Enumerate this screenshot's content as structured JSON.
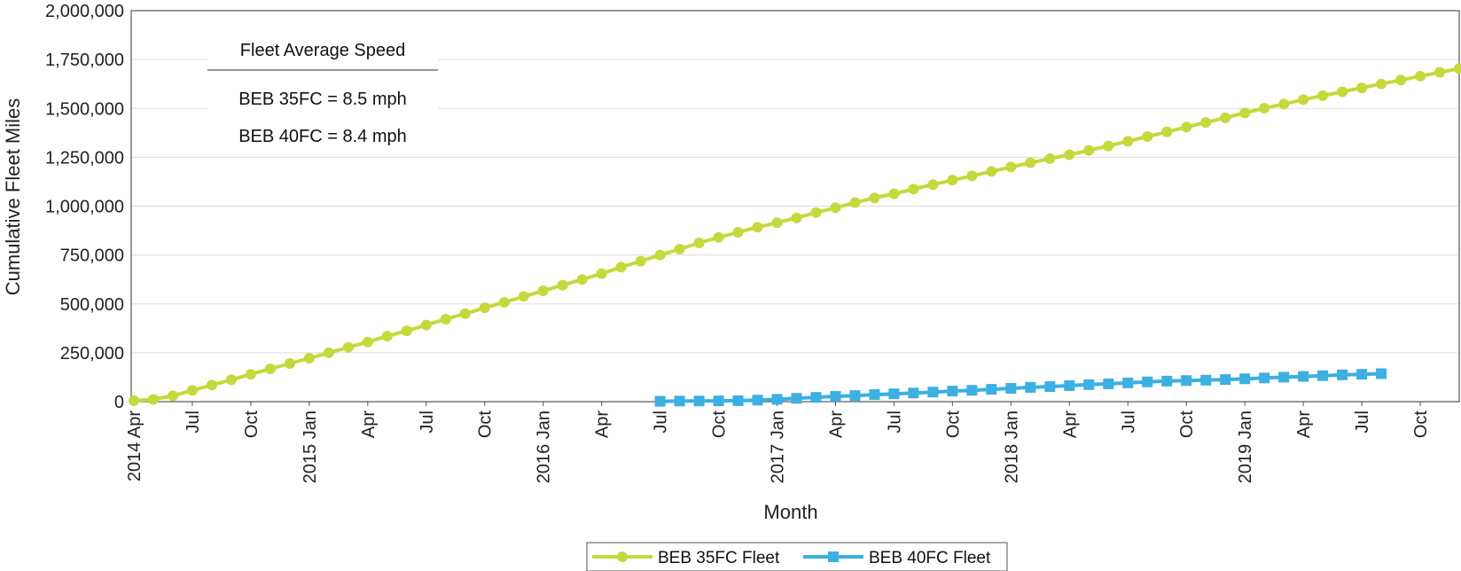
{
  "colors": {
    "series_35fc": "#c5d93b",
    "series_40fc": "#3bb0e2",
    "grid": "#dddddd",
    "axis": "#555555",
    "text": "#222222"
  },
  "annotation": {
    "title": "Fleet Average Speed",
    "lines": [
      "BEB 35FC = 8.5 mph",
      "BEB 40FC = 8.4 mph"
    ]
  },
  "chart_data": {
    "type": "line",
    "title": "",
    "xlabel": "Month",
    "ylabel": "Cumulative Fleet Miles",
    "ylim": [
      0,
      2000000
    ],
    "yticks": [
      0,
      250000,
      500000,
      750000,
      1000000,
      1250000,
      1500000,
      1750000,
      2000000
    ],
    "ytick_labels": [
      "0",
      "250,000",
      "500,000",
      "750,000",
      "1,000,000",
      "1,250,000",
      "1,500,000",
      "1,750,000",
      "2,000,000"
    ],
    "x_months": [
      "2014-04",
      "2014-05",
      "2014-06",
      "2014-07",
      "2014-08",
      "2014-09",
      "2014-10",
      "2014-11",
      "2014-12",
      "2015-01",
      "2015-02",
      "2015-03",
      "2015-04",
      "2015-05",
      "2015-06",
      "2015-07",
      "2015-08",
      "2015-09",
      "2015-10",
      "2015-11",
      "2015-12",
      "2016-01",
      "2016-02",
      "2016-03",
      "2016-04",
      "2016-05",
      "2016-06",
      "2016-07",
      "2016-08",
      "2016-09",
      "2016-10",
      "2016-11",
      "2016-12",
      "2017-01",
      "2017-02",
      "2017-03",
      "2017-04",
      "2017-05",
      "2017-06",
      "2017-07",
      "2017-08",
      "2017-09",
      "2017-10",
      "2017-11",
      "2017-12",
      "2018-01",
      "2018-02",
      "2018-03",
      "2018-04",
      "2018-05",
      "2018-06",
      "2018-07",
      "2018-08",
      "2018-09",
      "2018-10",
      "2018-11",
      "2018-12",
      "2019-01",
      "2019-02",
      "2019-03",
      "2019-04",
      "2019-05",
      "2019-06",
      "2019-07",
      "2019-08",
      "2019-09",
      "2019-10",
      "2019-11",
      "2019-12"
    ],
    "xtick_labels": [
      "2014 Apr",
      "Jul",
      "Oct",
      "2015 Jan",
      "Apr",
      "Jul",
      "Oct",
      "2016 Jan",
      "Apr",
      "Jul",
      "Oct",
      "2017 Jan",
      "Apr",
      "Jul",
      "Oct",
      "2018 Jan",
      "Apr",
      "Jul",
      "Oct",
      "2019 Jan",
      "Apr",
      "Jul",
      "Oct"
    ],
    "xtick_months": [
      "2014-04",
      "2014-07",
      "2014-10",
      "2015-01",
      "2015-04",
      "2015-07",
      "2015-10",
      "2016-01",
      "2016-04",
      "2016-07",
      "2016-10",
      "2017-01",
      "2017-04",
      "2017-07",
      "2017-10",
      "2018-01",
      "2018-04",
      "2018-07",
      "2018-10",
      "2019-01",
      "2019-04",
      "2019-07",
      "2019-10"
    ],
    "grid": true,
    "legend_position": "bottom-center",
    "series": [
      {
        "name": "BEB 35FC Fleet",
        "marker": "circle",
        "color": "#c5d93b",
        "start_month": "2014-04",
        "values": [
          5000,
          12000,
          30000,
          58000,
          85000,
          112000,
          140000,
          168000,
          195000,
          222000,
          250000,
          278000,
          305000,
          335000,
          362000,
          392000,
          422000,
          450000,
          480000,
          508000,
          538000,
          567000,
          596000,
          625000,
          655000,
          688000,
          718000,
          750000,
          780000,
          812000,
          840000,
          866000,
          892000,
          915000,
          940000,
          967000,
          992000,
          1018000,
          1042000,
          1063000,
          1087000,
          1110000,
          1133000,
          1155000,
          1178000,
          1200000,
          1222000,
          1243000,
          1263000,
          1285000,
          1308000,
          1332000,
          1356000,
          1380000,
          1404000,
          1428000,
          1452000,
          1477000,
          1501000,
          1522000,
          1545000,
          1565000,
          1585000,
          1605000,
          1625000,
          1645000,
          1665000,
          1685000,
          1703000
        ]
      },
      {
        "name": "BEB 40FC Fleet",
        "marker": "square",
        "color": "#3bb0e2",
        "start_month": "2016-07",
        "values": [
          2000,
          3000,
          3500,
          4000,
          5000,
          8000,
          12000,
          17000,
          22000,
          27000,
          31000,
          36000,
          40000,
          44000,
          49000,
          54000,
          58000,
          63000,
          68000,
          73000,
          77000,
          82000,
          87000,
          91000,
          96000,
          101000,
          105000,
          108000,
          110000,
          113000,
          117000,
          121000,
          125000,
          129000,
          133000,
          137000,
          140000,
          143000
        ]
      }
    ]
  }
}
